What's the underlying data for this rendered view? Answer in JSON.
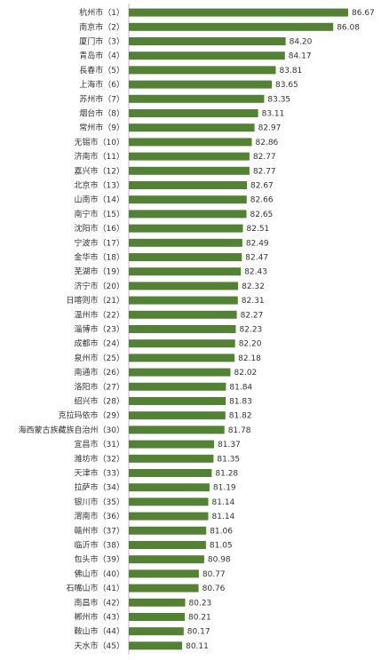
{
  "chart_data": {
    "type": "bar",
    "orientation": "horizontal",
    "color": "#548235",
    "categories": [
      "杭州市（1）",
      "南京市（2）",
      "厦门市（3）",
      "青岛市（4）",
      "長春市（5）",
      "上海市（6）",
      "苏州市（7）",
      "烟台市（8）",
      "常州市（9）",
      "无锡市（10）",
      "济南市（11）",
      "嘉兴市（12）",
      "北京市（13）",
      "山南市（14）",
      "南宁市（15）",
      "沈阳市（16）",
      "宁波市（17）",
      "金华市（18）",
      "芜湖市（19）",
      "济宁市（20）",
      "日喀则市（21）",
      "温州市（22）",
      "淄博市（23）",
      "成都市（24）",
      "泉州市（25）",
      "南通市（26）",
      "洛阳市（27）",
      "绍兴市（28）",
      "克拉玛依市（29）",
      "海西蒙古族藏族自治州（30）",
      "宜昌市（31）",
      "潍坊市（32）",
      "天津市（33）",
      "拉萨市（34）",
      "银川市（35）",
      "渭南市（36）",
      "赣州市（37）",
      "临沂市（38）",
      "包头市（39）",
      "佛山市（40）",
      "石嘴山市（41）",
      "南昌市（42）",
      "郴州市（43）",
      "鞍山市（44）",
      "天水市（45）"
    ],
    "values": [
      86.67,
      86.08,
      84.2,
      84.17,
      83.81,
      83.65,
      83.35,
      83.11,
      82.97,
      82.86,
      82.77,
      82.77,
      82.67,
      82.66,
      82.65,
      82.51,
      82.49,
      82.47,
      82.43,
      82.32,
      82.31,
      82.27,
      82.23,
      82.2,
      82.18,
      82.02,
      81.84,
      81.83,
      81.82,
      81.78,
      81.37,
      81.35,
      81.28,
      81.19,
      81.14,
      81.14,
      81.06,
      81.05,
      80.98,
      80.77,
      80.76,
      80.23,
      80.21,
      80.17,
      80.11
    ],
    "value_labels": [
      "86.67",
      "86.08",
      "84.20",
      "84.17",
      "83.81",
      "83.65",
      "83.35",
      "83.11",
      "82.97",
      "82.86",
      "82.77",
      "82.77",
      "82.67",
      "82.66",
      "82.65",
      "82.51",
      "82.49",
      "82.47",
      "82.43",
      "82.32",
      "82.31",
      "82.27",
      "82.23",
      "82.20",
      "82.18",
      "82.02",
      "81.84",
      "81.83",
      "81.82",
      "81.78",
      "81.37",
      "81.35",
      "81.28",
      "81.19",
      "81.14",
      "81.14",
      "81.06",
      "81.05",
      "80.98",
      "80.77",
      "80.76",
      "80.23",
      "80.21",
      "80.17",
      "80.11"
    ],
    "title": "",
    "xlabel": "",
    "ylabel": "",
    "xlim": [
      78,
      87
    ],
    "grid": false,
    "legend": "none"
  }
}
